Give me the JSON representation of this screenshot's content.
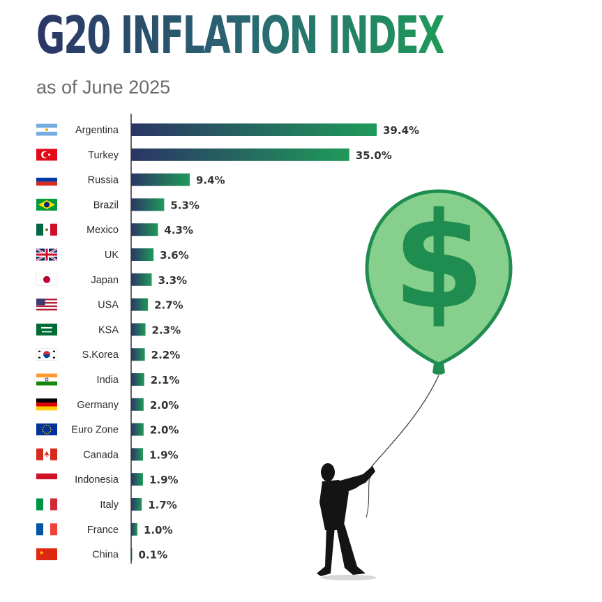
{
  "header": {
    "title": "G20 INFLATION INDEX",
    "subtitle": "as of June 2025"
  },
  "colors": {
    "bar_start": "#2b3565",
    "bar_end": "#1f9a5a",
    "balloon_fill": "#86cf8c",
    "balloon_stroke": "#1f8d4f",
    "dollar": "#1f8d4f",
    "label_text": "#2b2b2b",
    "value_text": "#333333"
  },
  "illustration": {
    "balloon_symbol": "$",
    "balloon_icon": "dollar-balloon-icon",
    "figure_icon": "man-holding-balloon-icon"
  },
  "chart_data": {
    "type": "bar",
    "orientation": "horizontal",
    "title": "G20 INFLATION INDEX",
    "subtitle": "as of June 2025",
    "xlabel": "",
    "ylabel": "",
    "grid": false,
    "unit": "%",
    "xlim": [
      0,
      39.4
    ],
    "categories": [
      "Argentina",
      "Turkey",
      "Russia",
      "Brazil",
      "Mexico",
      "UK",
      "Japan",
      "USA",
      "KSA",
      "S.Korea",
      "India",
      "Germany",
      "Euro Zone",
      "Canada",
      "Indonesia",
      "Italy",
      "France",
      "China"
    ],
    "values": [
      39.4,
      35.0,
      9.4,
      5.3,
      4.3,
      3.6,
      3.3,
      2.7,
      2.3,
      2.2,
      2.1,
      2.0,
      2.0,
      1.9,
      1.9,
      1.7,
      1.0,
      0.1
    ],
    "value_labels": [
      "39.4%",
      "35.0%",
      "9.4%",
      "5.3%",
      "4.3%",
      "3.6%",
      "3.3%",
      "2.7%",
      "2.3%",
      "2.2%",
      "2.1%",
      "2.0%",
      "2.0%",
      "1.9%",
      "1.9%",
      "1.7%",
      "1.0%",
      "0.1%"
    ],
    "flags": [
      "argentina-flag-icon",
      "turkey-flag-icon",
      "russia-flag-icon",
      "brazil-flag-icon",
      "mexico-flag-icon",
      "uk-flag-icon",
      "japan-flag-icon",
      "usa-flag-icon",
      "ksa-flag-icon",
      "south-korea-flag-icon",
      "india-flag-icon",
      "germany-flag-icon",
      "euro-zone-flag-icon",
      "canada-flag-icon",
      "indonesia-flag-icon",
      "italy-flag-icon",
      "france-flag-icon",
      "china-flag-icon"
    ]
  }
}
